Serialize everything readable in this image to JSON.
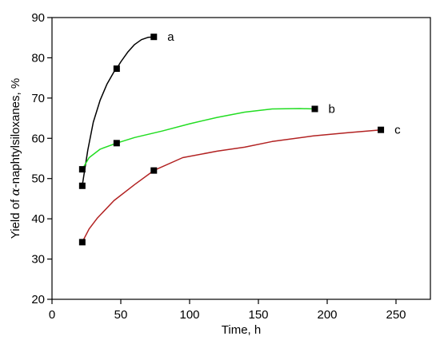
{
  "chart_data": {
    "type": "line",
    "title": "",
    "xlabel": "Time, h",
    "ylabel_prefix": "Yield of ",
    "ylabel_symbol": "α",
    "ylabel_suffix": "-naphtylsiloxanes, %",
    "xlim": [
      0,
      275
    ],
    "ylim": [
      20,
      90
    ],
    "x_ticks": [
      0,
      50,
      100,
      150,
      200,
      250
    ],
    "y_ticks": [
      20,
      30,
      40,
      50,
      60,
      70,
      80,
      90
    ],
    "grid": false,
    "series": [
      {
        "name": "a",
        "color": "#000000",
        "points": [
          [
            22,
            48.2
          ],
          [
            47,
            77.3
          ],
          [
            74,
            85.2
          ]
        ],
        "curve": [
          [
            22,
            48.2
          ],
          [
            26,
            57
          ],
          [
            30,
            64
          ],
          [
            35,
            69.5
          ],
          [
            40,
            73.5
          ],
          [
            45,
            76.5
          ],
          [
            47,
            77.3
          ],
          [
            50,
            79
          ],
          [
            55,
            81.4
          ],
          [
            60,
            83.3
          ],
          [
            65,
            84.5
          ],
          [
            70,
            85.1
          ],
          [
            74,
            85.2
          ]
        ]
      },
      {
        "name": "b",
        "color": "#22dd22",
        "points": [
          [
            22,
            52.3
          ],
          [
            47,
            58.8
          ],
          [
            191,
            67.3
          ]
        ],
        "curve": [
          [
            22,
            52.3
          ],
          [
            27,
            55.2
          ],
          [
            35,
            57.3
          ],
          [
            47,
            58.8
          ],
          [
            60,
            60.2
          ],
          [
            80,
            61.8
          ],
          [
            100,
            63.6
          ],
          [
            120,
            65.2
          ],
          [
            140,
            66.5
          ],
          [
            160,
            67.3
          ],
          [
            180,
            67.4
          ],
          [
            191,
            67.3
          ]
        ]
      },
      {
        "name": "c",
        "color": "#b22222",
        "points": [
          [
            22,
            34.2
          ],
          [
            74,
            52.0
          ],
          [
            239,
            62.1
          ]
        ],
        "curve": [
          [
            22,
            34.2
          ],
          [
            27,
            37.5
          ],
          [
            33,
            40.2
          ],
          [
            45,
            44.5
          ],
          [
            60,
            48.5
          ],
          [
            74,
            52.0
          ],
          [
            95,
            55.2
          ],
          [
            120,
            56.8
          ],
          [
            140,
            57.8
          ],
          [
            160,
            59.2
          ],
          [
            190,
            60.6
          ],
          [
            215,
            61.4
          ],
          [
            239,
            62.1
          ]
        ]
      }
    ]
  }
}
